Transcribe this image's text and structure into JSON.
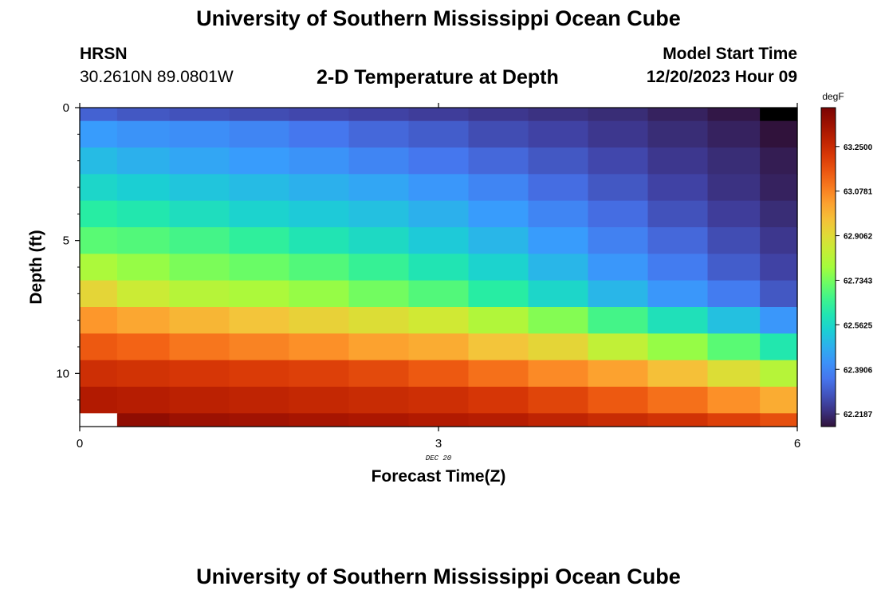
{
  "header": {
    "title": "University of Southern Mississippi Ocean Cube",
    "station": "HRSN",
    "coordinates": "30.2610N  89.0801W",
    "plot_title": "2-D Temperature at Depth",
    "model_start_label": "Model Start Time",
    "model_start_value": "12/20/2023 Hour 09"
  },
  "footer": {
    "title": "University of Southern Mississippi Ocean Cube"
  },
  "chart_data": {
    "type": "heatmap",
    "title": "2-D Temperature at Depth",
    "xlabel": "Forecast Time(Z)",
    "ylabel": "Depth (ft)",
    "x_ticks": [
      "0",
      "3",
      "6"
    ],
    "x_sublabel": "DEC 20",
    "y_ticks": [
      "0",
      "5",
      "10"
    ],
    "xlim": [
      0,
      6
    ],
    "ylim": [
      0,
      12
    ],
    "y_inverted": true,
    "colorbar": {
      "unit": "degF",
      "tick_labels": [
        "63.2500",
        "63.0781",
        "62.9062",
        "62.7343",
        "62.5625",
        "62.3906",
        "62.2187"
      ],
      "tick_values": [
        63.25,
        63.0781,
        62.9062,
        62.7343,
        62.5625,
        62.3906,
        62.2187
      ],
      "range": [
        62.17,
        63.4
      ]
    },
    "x": [
      0.125,
      0.5,
      1.0,
      1.5,
      2.0,
      2.5,
      3.0,
      3.5,
      4.0,
      4.5,
      5.0,
      5.5,
      5.875
    ],
    "depth": [
      0.0,
      1.0,
      2.0,
      3.0,
      4.0,
      5.0,
      6.0,
      7.0,
      8.0,
      9.0,
      10.0,
      11.0,
      12.0
    ],
    "values": [
      [
        62.32,
        62.3,
        62.29,
        62.28,
        62.27,
        62.26,
        62.25,
        62.24,
        62.23,
        62.22,
        62.2,
        62.18,
        61.9
      ],
      [
        62.44,
        62.42,
        62.41,
        62.39,
        62.36,
        62.33,
        62.31,
        62.28,
        62.26,
        62.24,
        62.22,
        62.2,
        62.17
      ],
      [
        62.5,
        62.48,
        62.46,
        62.44,
        62.42,
        62.39,
        62.36,
        62.33,
        62.3,
        62.27,
        62.24,
        62.22,
        62.19
      ],
      [
        62.56,
        62.54,
        62.52,
        62.5,
        62.48,
        62.46,
        62.43,
        62.39,
        62.34,
        62.3,
        62.26,
        62.23,
        62.2
      ],
      [
        62.63,
        62.61,
        62.58,
        62.55,
        62.53,
        62.51,
        62.48,
        62.44,
        62.39,
        62.34,
        62.29,
        62.25,
        62.22
      ],
      [
        62.7,
        62.69,
        62.67,
        62.64,
        62.6,
        62.57,
        62.53,
        62.49,
        62.44,
        62.38,
        62.33,
        62.28,
        62.24
      ],
      [
        62.8,
        62.77,
        62.74,
        62.72,
        62.69,
        62.65,
        62.6,
        62.55,
        62.49,
        62.43,
        62.37,
        62.31,
        62.26
      ],
      [
        62.92,
        62.86,
        62.82,
        62.8,
        62.77,
        62.73,
        62.69,
        62.63,
        62.56,
        62.49,
        62.43,
        62.37,
        62.3
      ],
      [
        63.05,
        63.02,
        62.99,
        62.96,
        62.93,
        62.9,
        62.87,
        62.81,
        62.75,
        62.67,
        62.59,
        62.51,
        62.43
      ],
      [
        63.15,
        63.13,
        63.1,
        63.08,
        63.06,
        63.03,
        63.01,
        62.96,
        62.92,
        62.84,
        62.77,
        62.7,
        62.61
      ],
      [
        63.24,
        63.23,
        63.22,
        63.21,
        63.2,
        63.18,
        63.15,
        63.11,
        63.07,
        63.03,
        62.97,
        62.9,
        62.82
      ],
      [
        63.3,
        63.29,
        63.28,
        63.27,
        63.26,
        63.25,
        63.24,
        63.22,
        63.19,
        63.15,
        63.11,
        63.06,
        63.01
      ],
      [
        null,
        63.36,
        63.34,
        63.33,
        63.32,
        63.31,
        63.3,
        63.29,
        63.27,
        63.25,
        63.23,
        63.2,
        63.17
      ]
    ]
  }
}
